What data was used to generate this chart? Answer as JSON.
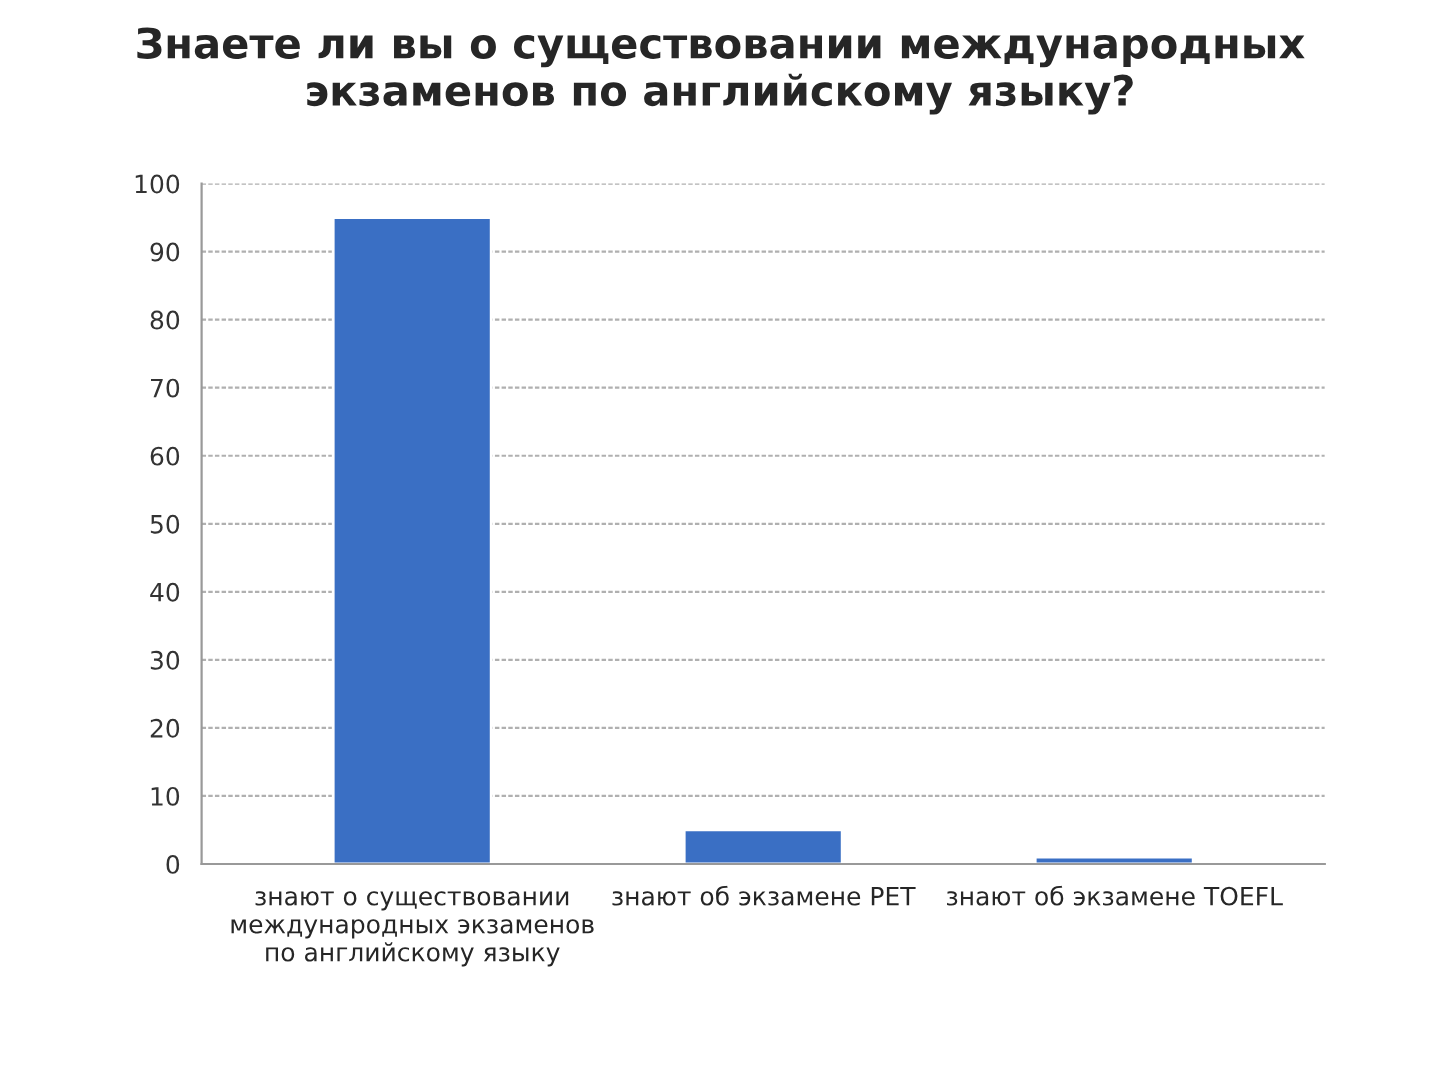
{
  "chart_data": {
    "type": "bar",
    "title": "Знаете ли вы о существовании международных\nэкзаменов по английскому языку?",
    "categories": [
      "знают о существовании\nмеждународных экзаменов\nпо английскому языку",
      "знают об экзамене PET",
      "знают об экзамене TOEFL"
    ],
    "values": [
      95,
      5,
      1
    ],
    "color": "#3a6fc4",
    "ylim": [
      0,
      100
    ],
    "yticks": [
      0,
      10,
      20,
      30,
      40,
      50,
      60,
      70,
      80,
      90,
      100
    ],
    "grid": "y",
    "legend": false
  }
}
